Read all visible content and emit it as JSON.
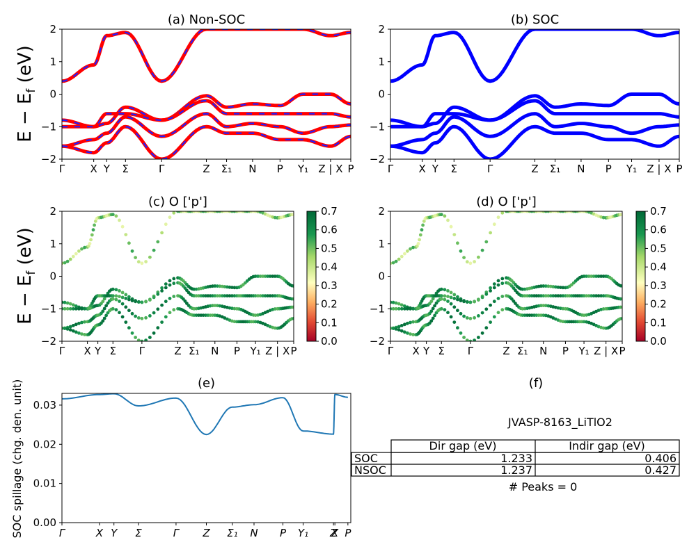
{
  "colors": {
    "nonsoc_line": "#ff0000",
    "nonsoc_dash": "#1f1fff",
    "soc_line": "#0000ff",
    "spillage_line": "#1f77b4"
  },
  "ylabel_energy": "E − E_f (eV)",
  "chart_data": [
    {
      "type": "line",
      "panel": "a",
      "title": "(a) Non-SOC",
      "ylim": [
        -2,
        2
      ],
      "yticks": [
        "2",
        "1",
        "0",
        "−1",
        "−2"
      ],
      "xticks": [
        "Γ",
        "X",
        "Y",
        "Σ",
        "Γ",
        "Z",
        "Σ₁",
        "N",
        "P",
        "Y₁",
        "Z | X",
        "P"
      ],
      "x": [
        0,
        0.11,
        0.155,
        0.22,
        0.345,
        0.5,
        0.57,
        0.66,
        0.755,
        0.835,
        0.93,
        1.0
      ],
      "series": [
        {
          "values": [
            0.4,
            0.9,
            1.8,
            1.9,
            0.4,
            2.0,
            2.0,
            2.0,
            2.0,
            2.0,
            1.8,
            1.9
          ]
        },
        {
          "values": [
            -0.8,
            -1.0,
            -0.9,
            -0.4,
            -0.8,
            -0.05,
            -0.4,
            -0.3,
            -0.35,
            0.0,
            0.0,
            -0.3
          ]
        },
        {
          "values": [
            -1.0,
            -1.0,
            -0.6,
            -0.6,
            -0.8,
            -0.2,
            -0.6,
            -0.6,
            -0.6,
            -0.6,
            -0.6,
            -0.7
          ]
        },
        {
          "values": [
            -1.6,
            -1.4,
            -1.2,
            -0.7,
            -1.3,
            -0.6,
            -1.0,
            -0.9,
            -1.0,
            -1.2,
            -1.0,
            -0.95
          ]
        },
        {
          "values": [
            -1.6,
            -1.8,
            -1.5,
            -1.0,
            -2.0,
            -1.0,
            -1.2,
            -1.2,
            -1.4,
            -1.4,
            -1.6,
            -1.3
          ]
        }
      ]
    },
    {
      "type": "line",
      "panel": "b",
      "title": "(b) SOC",
      "ylim": [
        -2,
        2
      ],
      "yticks": [
        "2",
        "1",
        "0",
        "−1",
        "−2"
      ],
      "xticks": [
        "Γ",
        "X",
        "Y",
        "Σ",
        "Γ",
        "Z",
        "Σ₁",
        "N",
        "P",
        "Y₁",
        "Z | X",
        "P"
      ],
      "x": [
        0,
        0.11,
        0.155,
        0.22,
        0.345,
        0.5,
        0.57,
        0.66,
        0.755,
        0.835,
        0.93,
        1.0
      ],
      "series": [
        {
          "values": [
            0.4,
            0.9,
            1.8,
            1.9,
            0.4,
            2.0,
            2.0,
            2.0,
            2.0,
            2.0,
            1.8,
            1.9
          ]
        },
        {
          "values": [
            -0.8,
            -1.0,
            -0.9,
            -0.4,
            -0.8,
            -0.05,
            -0.4,
            -0.3,
            -0.35,
            0.0,
            0.0,
            -0.3
          ]
        },
        {
          "values": [
            -1.0,
            -1.0,
            -0.6,
            -0.6,
            -0.8,
            -0.2,
            -0.6,
            -0.6,
            -0.6,
            -0.6,
            -0.6,
            -0.7
          ]
        },
        {
          "values": [
            -1.6,
            -1.4,
            -1.2,
            -0.7,
            -1.3,
            -0.6,
            -1.0,
            -0.9,
            -1.0,
            -1.2,
            -1.0,
            -0.95
          ]
        },
        {
          "values": [
            -1.6,
            -1.8,
            -1.5,
            -1.0,
            -2.0,
            -1.0,
            -1.2,
            -1.2,
            -1.4,
            -1.4,
            -1.6,
            -1.3
          ]
        }
      ]
    },
    {
      "type": "scatter",
      "panel": "c",
      "title": "(c)  O ['p']",
      "ylim": [
        -2,
        2
      ],
      "yticks": [
        "2",
        "1",
        "0",
        "−1",
        "−2"
      ],
      "xticks": [
        "Γ",
        "X",
        "Y",
        "Σ",
        "Γ",
        "Z",
        "Σ₁",
        "N",
        "P",
        "Y₁",
        "Z | X",
        "P"
      ],
      "x": [
        0,
        0.11,
        0.155,
        0.22,
        0.345,
        0.5,
        0.57,
        0.66,
        0.755,
        0.835,
        0.93,
        1.0
      ],
      "colorbar": {
        "min": 0.0,
        "max": 0.7,
        "ticks": [
          "0.7",
          "0.6",
          "0.5",
          "0.4",
          "0.3",
          "0.2",
          "0.1",
          "0.0"
        ]
      }
    },
    {
      "type": "scatter",
      "panel": "d",
      "title": "(d) O ['p']",
      "ylim": [
        -2,
        2
      ],
      "yticks": [
        "2",
        "1",
        "0",
        "−1",
        "−2"
      ],
      "xticks": [
        "Γ",
        "X",
        "Y",
        "Σ",
        "Γ",
        "Z",
        "Σ₁",
        "N",
        "P",
        "Y₁",
        "Z | X",
        "P"
      ],
      "x": [
        0,
        0.11,
        0.155,
        0.22,
        0.345,
        0.5,
        0.57,
        0.66,
        0.755,
        0.835,
        0.93,
        1.0
      ],
      "colorbar": {
        "min": 0.0,
        "max": 0.7,
        "ticks": [
          "0.7",
          "0.6",
          "0.5",
          "0.4",
          "0.3",
          "0.2",
          "0.1",
          "0.0"
        ]
      }
    },
    {
      "type": "line",
      "panel": "e",
      "title": "(e)",
      "ylabel": "SOC spillage (chg. den. unit)",
      "ylim": [
        0,
        0.033
      ],
      "yticks": [
        "0.03",
        "0.02",
        "0.01",
        "0.00"
      ],
      "xticks": [
        "Γ",
        "X",
        "Y",
        "Σ",
        "Γ",
        "Z",
        "Σ₁",
        "N",
        "P",
        "Y₁",
        "Z",
        "X",
        "P"
      ],
      "x": [
        0,
        0.13,
        0.18,
        0.265,
        0.395,
        0.5,
        0.59,
        0.665,
        0.765,
        0.835,
        0.94,
        0.945,
        0.99
      ],
      "values": [
        0.0316,
        0.0327,
        0.0329,
        0.0298,
        0.0318,
        0.0225,
        0.0295,
        0.0301,
        0.0319,
        0.0234,
        0.0226,
        0.0327,
        0.032
      ]
    },
    {
      "type": "table",
      "panel": "f",
      "title": "(f)",
      "caption": "JVASP-8163_LiTlO2",
      "columns": [
        "Dir gap (eV)",
        "Indir gap (eV)"
      ],
      "rows": [
        {
          "label": "SOC",
          "values": [
            "1.233",
            "0.406"
          ]
        },
        {
          "label": "NSOC",
          "values": [
            "1.237",
            "0.427"
          ]
        }
      ],
      "footer": "# Peaks = 0"
    }
  ]
}
